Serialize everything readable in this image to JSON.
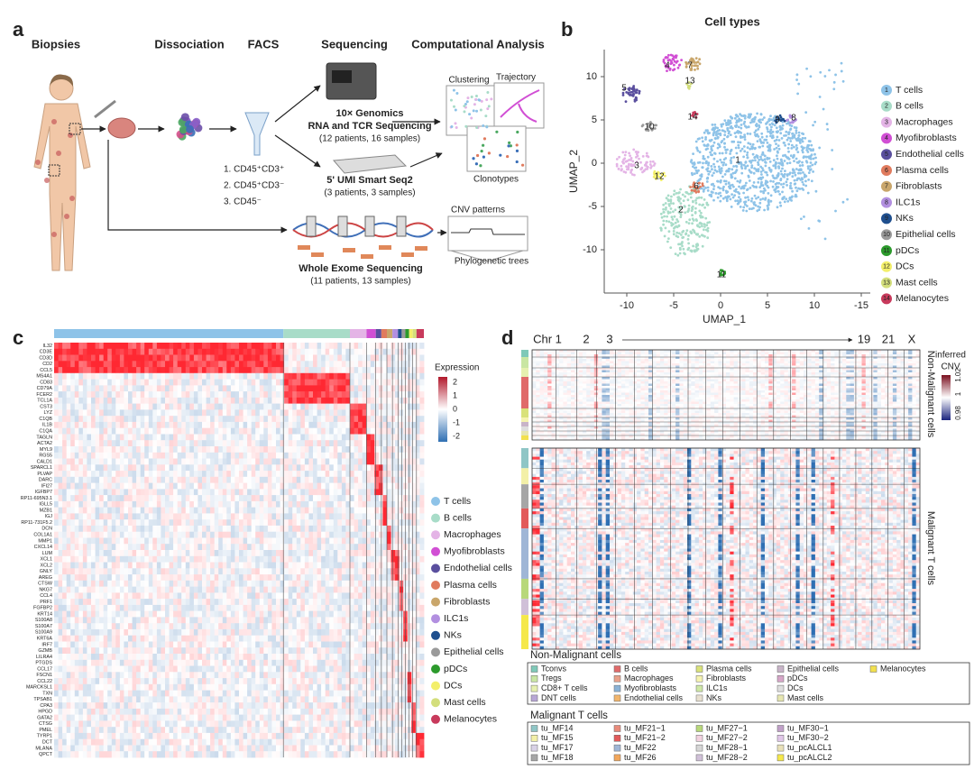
{
  "panel_a": {
    "letter": "a",
    "steps": [
      "Biopsies",
      "Dissociation",
      "FACS",
      "Sequencing",
      "Computational Analysis"
    ],
    "facs_gates": [
      "1. CD45⁺CD3⁺",
      "2. CD45⁺CD3⁻",
      "3. CD45⁻"
    ],
    "genomics": [
      "10× Genomics",
      "RNA and TCR Sequencing",
      "(12 patients, 16 samples)"
    ],
    "smartseq": [
      "5' UMI Smart Seq2",
      "(3 patients, 3 samples)"
    ],
    "wes": [
      "Whole Exome Sequencing",
      "(11 patients, 13 samples)"
    ],
    "analysis": [
      "Clustering",
      "Trajectory",
      "Clonotypes",
      "CNV patterns",
      "Phylogenetic trees"
    ]
  },
  "panel_b": {
    "letter": "b",
    "title": "Cell types",
    "x_label": "UMAP_1",
    "y_label": "UMAP_2",
    "xticks": [
      "-10",
      "-5",
      "0",
      "5",
      "10",
      "-15"
    ],
    "yticks": [
      "10",
      "5",
      "0",
      "-5",
      "-10"
    ],
    "legend": [
      {
        "num": "1",
        "name": "T cells",
        "color": "#8ec3e8"
      },
      {
        "num": "2",
        "name": "B cells",
        "color": "#a8dcc8"
      },
      {
        "num": "3",
        "name": "Macrophages",
        "color": "#e4b4e6"
      },
      {
        "num": "4",
        "name": "Myofibroblasts",
        "color": "#d14fd4"
      },
      {
        "num": "5",
        "name": "Endothelial cells",
        "color": "#5a4f9e"
      },
      {
        "num": "6",
        "name": "Plasma cells",
        "color": "#e07b5e"
      },
      {
        "num": "7",
        "name": "Fibroblasts",
        "color": "#c9a66b"
      },
      {
        "num": "8",
        "name": "ILC1s",
        "color": "#b28fe0"
      },
      {
        "num": "9",
        "name": "NKs",
        "color": "#1f4f8e"
      },
      {
        "num": "10",
        "name": "Epithelial cells",
        "color": "#9a9a9a"
      },
      {
        "num": "11",
        "name": "pDCs",
        "color": "#2c9a2c"
      },
      {
        "num": "12",
        "name": "DCs",
        "color": "#f3ef6b"
      },
      {
        "num": "13",
        "name": "Mast cells",
        "color": "#d3de7c"
      },
      {
        "num": "14",
        "name": "Melanocytes",
        "color": "#c83a5c"
      }
    ]
  },
  "panel_c": {
    "letter": "c",
    "legend_title": "Expression",
    "scale_ticks": [
      "2",
      "1",
      "0",
      "-1",
      "-2"
    ],
    "genes": [
      "IL32",
      "CD3E",
      "CD3D",
      "CD2",
      "CCL5",
      "MS4A1",
      "CD83",
      "CD79A",
      "FCER2",
      "TCL1A",
      "CST3",
      "LYZ",
      "C1QB",
      "IL1B",
      "C1QA",
      "TAGLN",
      "ACTA2",
      "MYL9",
      "RGS5",
      "CALD1",
      "SPARCL1",
      "PLVAP",
      "DARC",
      "IFI27",
      "IGFBP7",
      "RP11-695N3.1",
      "IGLL5",
      "MZB1",
      "IGJ",
      "RP11-731F5.2",
      "DCN",
      "COL1A1",
      "MMP1",
      "CXCL14",
      "LUM",
      "XCL1",
      "XCL2",
      "GNLY",
      "AREG",
      "CTSW",
      "NKG7",
      "CCL4",
      "PRF1",
      "FGFBP2",
      "KRT14",
      "S100A8",
      "S100A7",
      "S100A9",
      "KRT6A",
      "IRF7",
      "GZMB",
      "LILRA4",
      "PTGDS",
      "CCL17",
      "FSCN1",
      "CCL22",
      "MARCKSL1",
      "TXN",
      "TPSAB1",
      "CPA3",
      "HPGD",
      "GATA2",
      "CTSG",
      "PMEL",
      "TYRP1",
      "DCT",
      "MLANA",
      "QPCT"
    ]
  },
  "panel_d": {
    "letter": "d",
    "chromosomes": [
      "Chr 1",
      "2",
      "3",
      "19",
      "21",
      "X"
    ],
    "scale_title": [
      "inferred",
      "CNV"
    ],
    "scale_ticks": [
      "0.98",
      "1",
      "1.02"
    ],
    "row_groups": [
      "Non-Malignant cells",
      "Malignant T cells"
    ],
    "non_malignant_legend": {
      "title": "Non-Malignant cells",
      "items": [
        {
          "name": "Tconvs",
          "color": "#7fc9b8"
        },
        {
          "name": "Tregs",
          "color": "#c9e6a3"
        },
        {
          "name": "CD8+ T cells",
          "color": "#e6f0b0"
        },
        {
          "name": "DNT cells",
          "color": "#b8a7d6"
        },
        {
          "name": "B cells",
          "color": "#e06a6a"
        },
        {
          "name": "Macrophages",
          "color": "#e8a08a"
        },
        {
          "name": "Myofibroblasts",
          "color": "#8ab2d6"
        },
        {
          "name": "Endothelial cells",
          "color": "#f2b56b"
        },
        {
          "name": "Plasma cells",
          "color": "#d9e27a"
        },
        {
          "name": "Fibroblasts",
          "color": "#f5f3b0"
        },
        {
          "name": "ILC1s",
          "color": "#cfe8a6"
        },
        {
          "name": "NKs",
          "color": "#e8e0d0"
        },
        {
          "name": "Epithelial cells",
          "color": "#c8b4c8"
        },
        {
          "name": "pDCs",
          "color": "#d6a6c8"
        },
        {
          "name": "DCs",
          "color": "#dedede"
        },
        {
          "name": "Mast cells",
          "color": "#e6e6b0"
        },
        {
          "name": "Melanocytes",
          "color": "#f2e04e"
        }
      ]
    },
    "malignant_legend": {
      "title": "Malignant T cells",
      "items": [
        {
          "name": "tu_MF14",
          "color": "#8fc6c6"
        },
        {
          "name": "tu_MF15",
          "color": "#f3f0a8"
        },
        {
          "name": "tu_MF17",
          "color": "#d9d2e6"
        },
        {
          "name": "tu_MF18",
          "color": "#a6a6a6"
        },
        {
          "name": "tu_MF21−1",
          "color": "#e88a7a"
        },
        {
          "name": "tu_MF21−2",
          "color": "#e25a5a"
        },
        {
          "name": "tu_MF22",
          "color": "#9fb6d6"
        },
        {
          "name": "tu_MF26",
          "color": "#f2a65a"
        },
        {
          "name": "tu_MF27−1",
          "color": "#b8d87a"
        },
        {
          "name": "tu_MF27−2",
          "color": "#f2d2e0"
        },
        {
          "name": "tu_MF28−1",
          "color": "#d6d6d6"
        },
        {
          "name": "tu_MF28−2",
          "color": "#d0c0d8"
        },
        {
          "name": "tu_MF30−1",
          "color": "#c0a0c8"
        },
        {
          "name": "tu_MF30−2",
          "color": "#e0c6e8"
        },
        {
          "name": "tu_pcALCL1",
          "color": "#e8e0b8"
        },
        {
          "name": "tu_pcALCL2",
          "color": "#f5e84a"
        }
      ]
    }
  }
}
